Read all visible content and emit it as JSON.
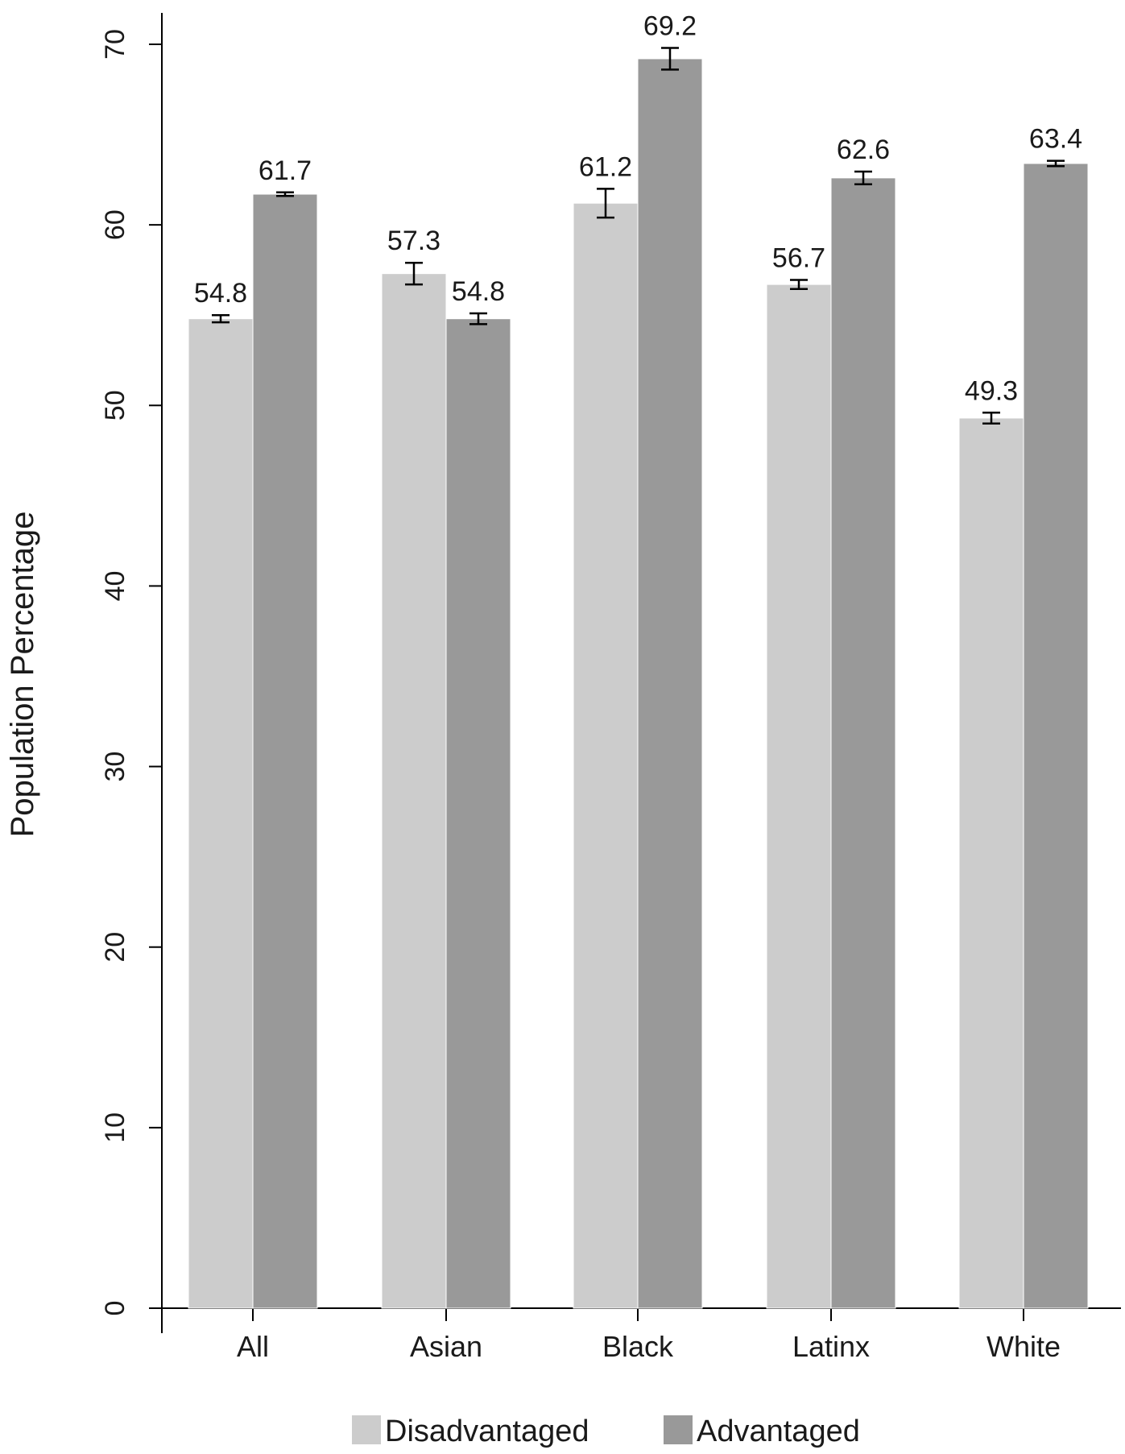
{
  "chart_data": {
    "type": "bar",
    "categories": [
      "All",
      "Asian",
      "Black",
      "Latinx",
      "White"
    ],
    "series": [
      {
        "name": "Disadvantaged",
        "color": "#cccccc",
        "values": [
          54.8,
          57.3,
          61.2,
          56.7,
          49.3
        ],
        "labels": [
          "54.8",
          "57.3",
          "61.2",
          "56.7",
          "49.3"
        ],
        "errors": [
          0.2,
          0.6,
          0.8,
          0.25,
          0.3
        ]
      },
      {
        "name": "Advantaged",
        "color": "#999999",
        "values": [
          61.7,
          54.8,
          69.2,
          62.6,
          63.4
        ],
        "labels": [
          "61.7",
          "54.8",
          "69.2",
          "62.6",
          "63.4"
        ],
        "errors": [
          0.1,
          0.3,
          0.6,
          0.35,
          0.15
        ]
      }
    ],
    "title": "",
    "xlabel": "",
    "ylabel": "Population Percentage",
    "ylim": [
      0,
      70
    ],
    "yticks": [
      0,
      10,
      20,
      30,
      40,
      50,
      60,
      70
    ],
    "ytick_labels": [
      "0",
      "10",
      "20",
      "30",
      "40",
      "50",
      "60",
      "70"
    ],
    "grid": false,
    "legend": "bottom"
  }
}
